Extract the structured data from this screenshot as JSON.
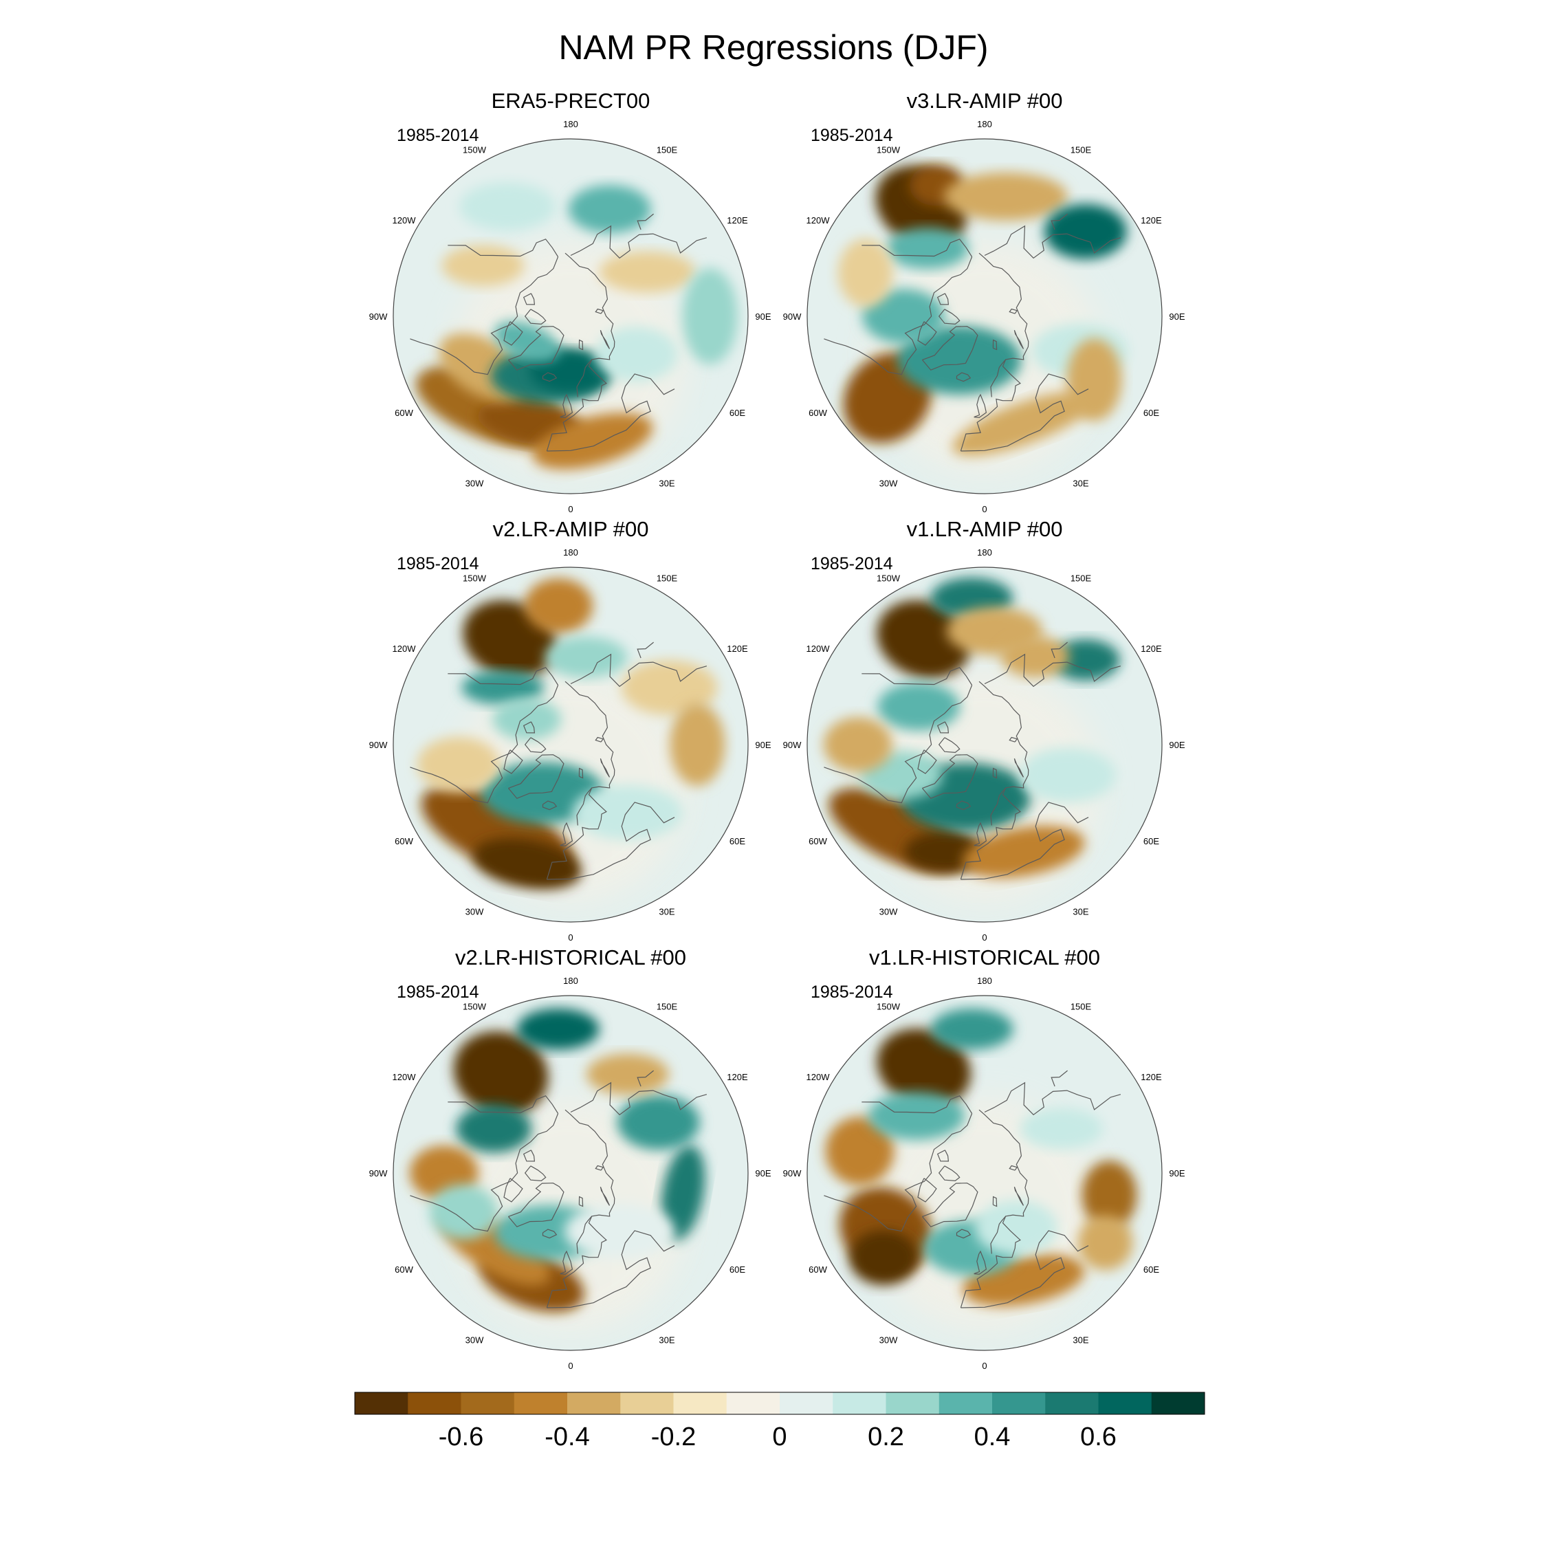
{
  "title": "NAM PR Regressions (DJF)",
  "panels": [
    {
      "title": "ERA5-PRECT00",
      "period": "1985-2014",
      "pattern": "era5"
    },
    {
      "title": "v3.LR-AMIP  #00",
      "period": "1985-2014",
      "pattern": "v3amip"
    },
    {
      "title": "v2.LR-AMIP  #00",
      "period": "1985-2014",
      "pattern": "v2amip"
    },
    {
      "title": "v1.LR-AMIP  #00",
      "period": "1985-2014",
      "pattern": "v1amip"
    },
    {
      "title": "v2.LR-HISTORICAL  #00",
      "period": "1985-2014",
      "pattern": "v2hist"
    },
    {
      "title": "v1.LR-HISTORICAL  #00",
      "period": "1985-2014",
      "pattern": "v1hist"
    }
  ],
  "longitude_labels": [
    "180",
    "150E",
    "120E",
    "90E",
    "60E",
    "30E",
    "0",
    "30W",
    "60W",
    "90W",
    "120W",
    "150W"
  ],
  "colorbar": {
    "colors": [
      "#543005",
      "#8c510a",
      "#a36a1c",
      "#bf812d",
      "#d3aa62",
      "#e8cf96",
      "#f6e8c3",
      "#f5f1e6",
      "#e4f0ee",
      "#c7eae5",
      "#99d6cb",
      "#5ab4ac",
      "#35978f",
      "#1b7a71",
      "#01665e",
      "#003c30"
    ],
    "tick_values": [
      -0.6,
      -0.4,
      -0.2,
      0,
      0.2,
      0.4,
      0.6
    ],
    "tick_labels": [
      "-0.6",
      "-0.4",
      "-0.2",
      "0",
      "0.2",
      "0.4",
      "0.6"
    ],
    "min": -0.8,
    "max": 0.8
  },
  "colors": {
    "land_outline": "#5a5a5a",
    "map_border": "#444444",
    "text": "#000000"
  }
}
